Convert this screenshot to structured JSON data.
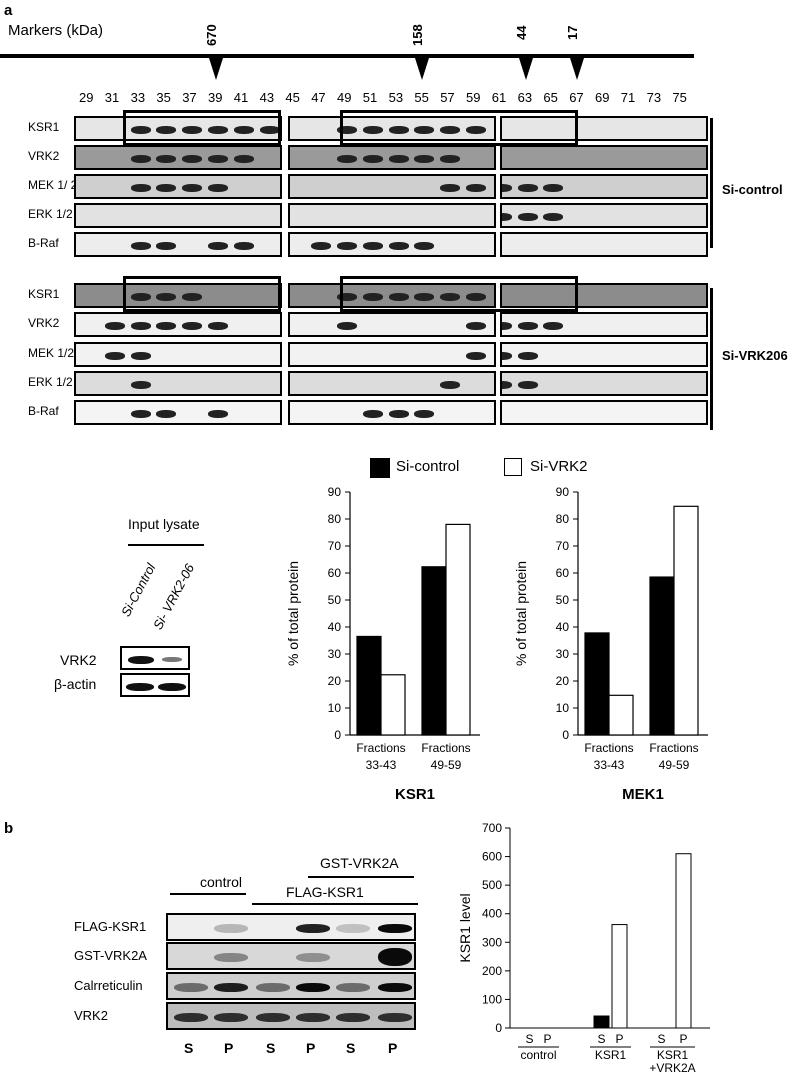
{
  "panel_a": {
    "label": "a",
    "markers_label": "Markers (kDa)",
    "markers": [
      {
        "label": "670",
        "fraction": "39"
      },
      {
        "label": "158",
        "fraction": "55"
      },
      {
        "label": "44",
        "fraction": "63"
      },
      {
        "label": "17",
        "fraction": "67"
      }
    ],
    "fractions": [
      "29",
      "31",
      "33",
      "35",
      "37",
      "39",
      "41",
      "43",
      "45",
      "47",
      "49",
      "51",
      "53",
      "55",
      "57",
      "59",
      "61",
      "63",
      "65",
      "67",
      "69",
      "71",
      "73",
      "75"
    ],
    "group1_rows": [
      "KSR1",
      "VRK2",
      "MEK 1/ 2",
      "ERK 1/2",
      "B-Raf"
    ],
    "group2_rows": [
      "KSR1",
      "VRK2",
      "MEK 1/2",
      "ERK 1/2",
      "B-Raf"
    ],
    "group1_label": "Si-control",
    "group2_label": "Si-VRK206",
    "input_lysate": {
      "title": "Input lysate",
      "lanes": [
        "Si-Control",
        "Si- VRK2-06"
      ],
      "rows": [
        "VRK2",
        "β-actin"
      ]
    },
    "legend": [
      "Si-control",
      "Si-VRK2"
    ]
  },
  "panel_b": {
    "label": "b",
    "header_control": "control",
    "header_flag": "FLAG-KSR1",
    "header_gst": "GST-VRK2A",
    "rows": [
      "FLAG-KSR1",
      "GST-VRK2A",
      "Calrreticulin",
      "VRK2"
    ],
    "lanes": [
      "S",
      "P",
      "S",
      "P",
      "S",
      "P"
    ]
  },
  "colors": {
    "filled": "#000000",
    "open": "#ffffff"
  },
  "chart_data": [
    {
      "type": "bar",
      "title": "KSR1",
      "ylabel": "% of total protein",
      "categories": [
        "Fractions 33-43",
        "Fractions 49-59"
      ],
      "category_lines": [
        [
          "Fractions",
          "33-43"
        ],
        [
          "Fractions",
          "49-59"
        ]
      ],
      "series": [
        {
          "name": "Si-control",
          "values": [
            36.5,
            62.3
          ]
        },
        {
          "name": "Si-VRK2",
          "values": [
            22.3,
            78.0
          ]
        }
      ],
      "ylim": [
        0,
        90
      ],
      "yticks": [
        "0",
        "10",
        "20",
        "30",
        "40",
        "50",
        "60",
        "70",
        "80",
        "90"
      ]
    },
    {
      "type": "bar",
      "title": "MEK1",
      "ylabel": "% of total protein",
      "categories": [
        "Fractions 33-43",
        "Fractions 49-59"
      ],
      "category_lines": [
        [
          "Fractions",
          "33-43"
        ],
        [
          "Fractions",
          "49-59"
        ]
      ],
      "series": [
        {
          "name": "Si-control",
          "values": [
            37.8,
            58.5
          ]
        },
        {
          "name": "Si-VRK2",
          "values": [
            14.7,
            84.7
          ]
        }
      ],
      "ylim": [
        0,
        90
      ],
      "yticks": [
        "0",
        "10",
        "20",
        "30",
        "40",
        "50",
        "60",
        "70",
        "80",
        "90"
      ]
    },
    {
      "type": "bar",
      "ylabel": "KSR1 level",
      "groups": [
        "control",
        "KSR1",
        "KSR1 +VRK2A"
      ],
      "group_lines": [
        [
          "control"
        ],
        [
          "KSR1"
        ],
        [
          "KSR1",
          "+VRK2A"
        ]
      ],
      "bar_labels": [
        "S",
        "P",
        "S",
        "P",
        "S",
        "P"
      ],
      "values": [
        0,
        0,
        42,
        362,
        0,
        610
      ],
      "fills": [
        "filled",
        "open",
        "filled",
        "open",
        "filled",
        "open"
      ],
      "ylim": [
        0,
        700
      ],
      "yticks": [
        "0",
        "100",
        "200",
        "300",
        "400",
        "500",
        "600",
        "700"
      ]
    }
  ]
}
